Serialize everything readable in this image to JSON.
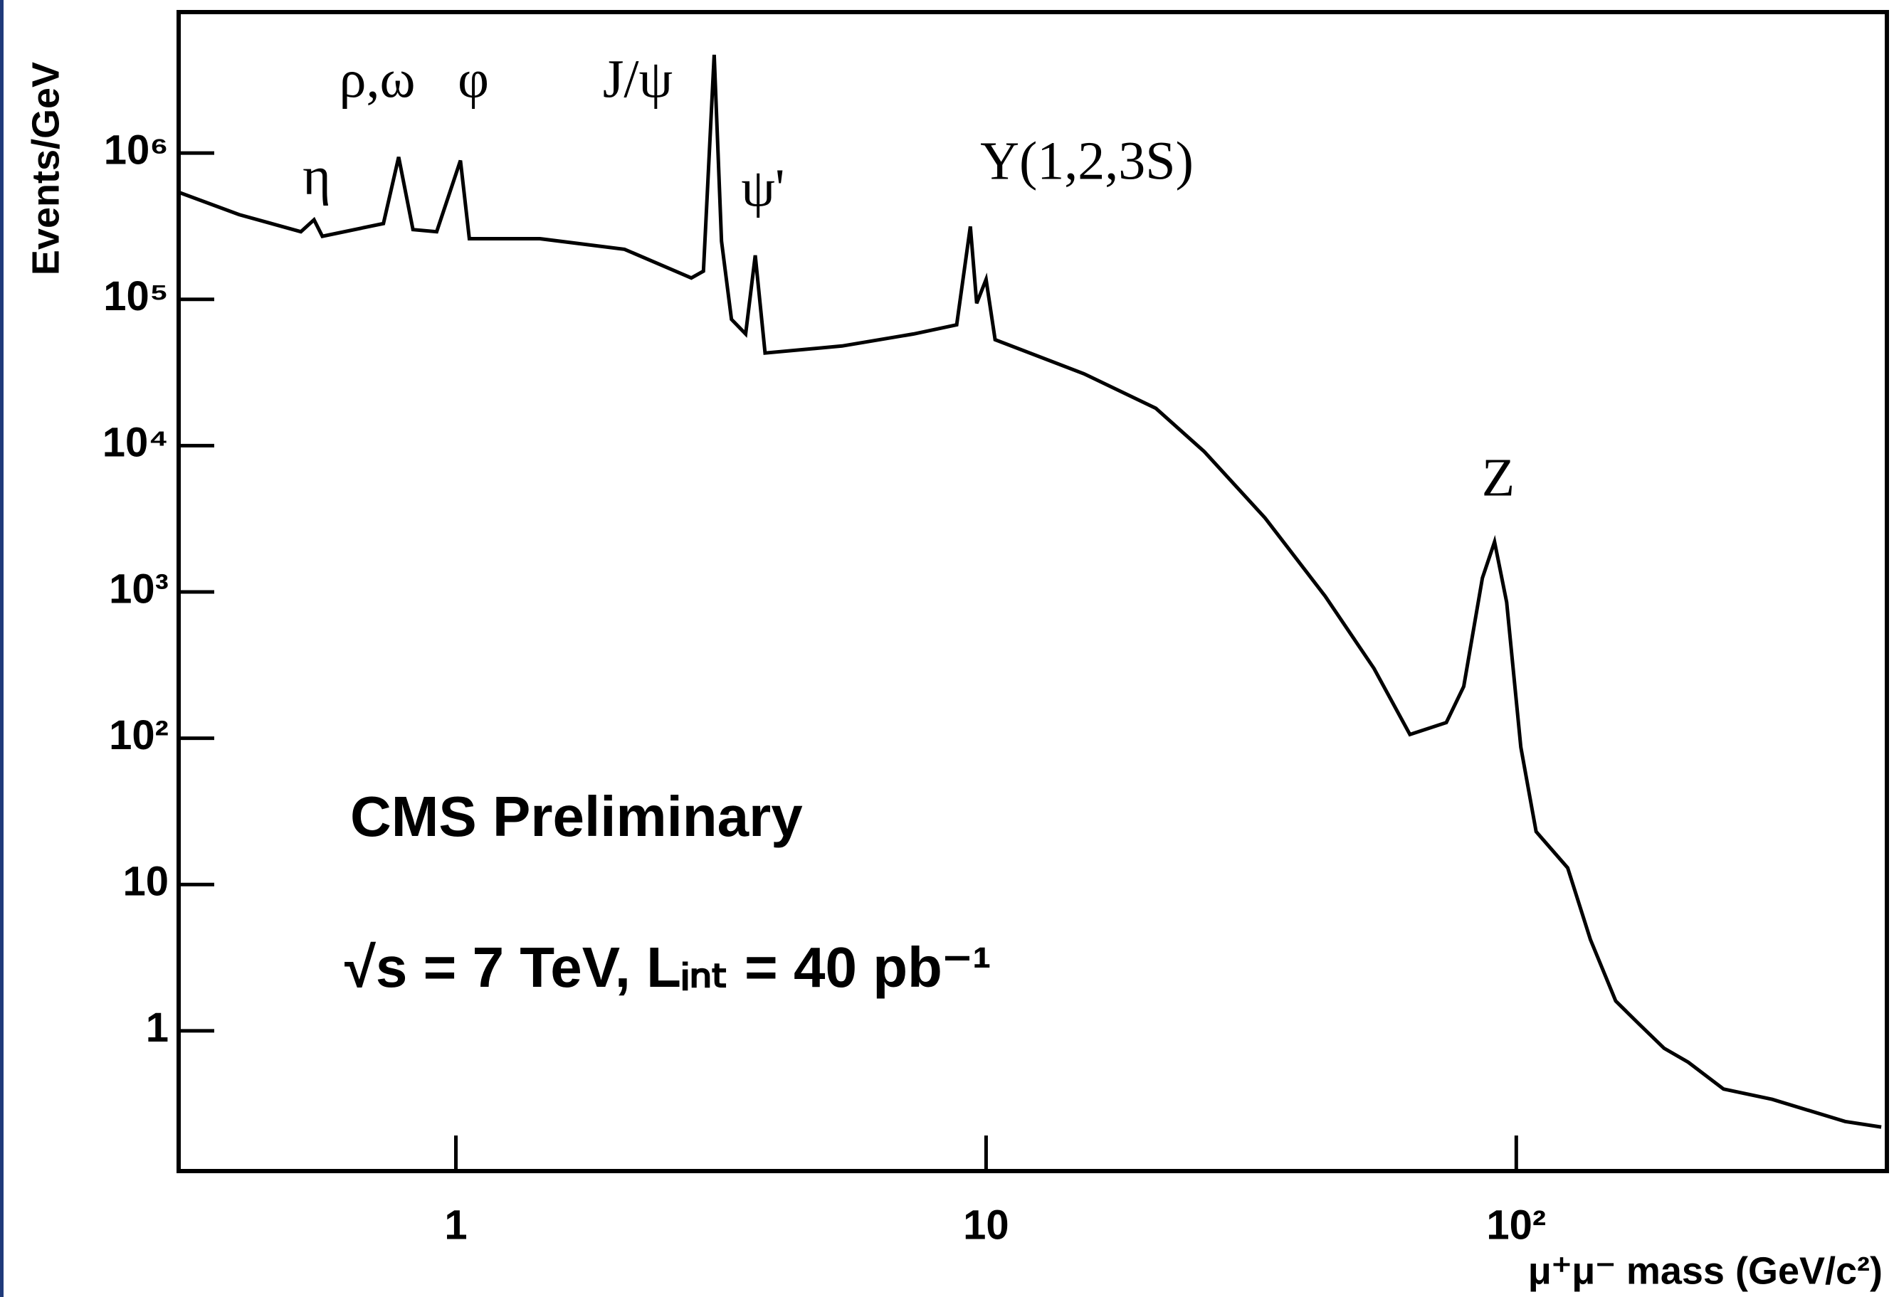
{
  "chart_data": {
    "type": "line",
    "x_label": "μ⁺μ⁻ mass (GeV/c²)",
    "y_label": "Events/GeV",
    "log_x": true,
    "log_y": true,
    "color": "#000000",
    "xlim": [
      0.3,
      500
    ],
    "ylim": [
      0.11,
      9200000
    ],
    "xticks": [
      1,
      10,
      {
        "value": 100,
        "label": "10²"
      }
    ],
    "yticks": [
      1,
      10,
      {
        "value": 100,
        "label": "10²"
      },
      {
        "value": 1000,
        "label": "10³"
      },
      {
        "value": 10000,
        "label": "10⁴"
      },
      {
        "value": 100000,
        "label": "10⁵"
      },
      {
        "value": 1000000,
        "label": "10⁶"
      }
    ],
    "annotations": [
      "η",
      "ρ,ω",
      "φ",
      "J/ψ",
      "ψ'",
      "Υ(1,2,3S)",
      "Z",
      "CMS Preliminary",
      "√s = 7 TeV,  Lᵢₙₜ = 40 pb⁻¹"
    ],
    "x": [
      0.3,
      0.39,
      0.51,
      0.54,
      0.56,
      0.73,
      0.78,
      0.83,
      0.92,
      1.02,
      1.06,
      1.44,
      2.08,
      2.78,
      2.93,
      3.07,
      3.17,
      3.31,
      3.52,
      3.67,
      3.83,
      5.35,
      7.3,
      8.8,
      9.34,
      9.6,
      10.0,
      10.4,
      15.3,
      20.9,
      25.8,
      33.6,
      43.6,
      53.9,
      63,
      73.8,
      79.6,
      86.3,
      91,
      95.9,
      102,
      109,
      125,
      138,
      154,
      171,
      190,
      211,
      246,
      304,
      417,
      488
    ],
    "values": [
      540000,
      380000,
      290000,
      350000,
      270000,
      330000,
      940000,
      300000,
      290000,
      890000,
      260000,
      260000,
      220000,
      140000,
      156000,
      4700000,
      250000,
      73000,
      58000,
      200000,
      43000,
      48000,
      58000,
      67000,
      315000,
      94000,
      137000,
      53000,
      31000,
      18000,
      9100,
      3200,
      935,
      300,
      106,
      128,
      226,
      1245,
      2200,
      850,
      87,
      23,
      13,
      4.2,
      1.6,
      1.1,
      0.76,
      0.61,
      0.4,
      0.34,
      0.24,
      0.22
    ]
  }
}
